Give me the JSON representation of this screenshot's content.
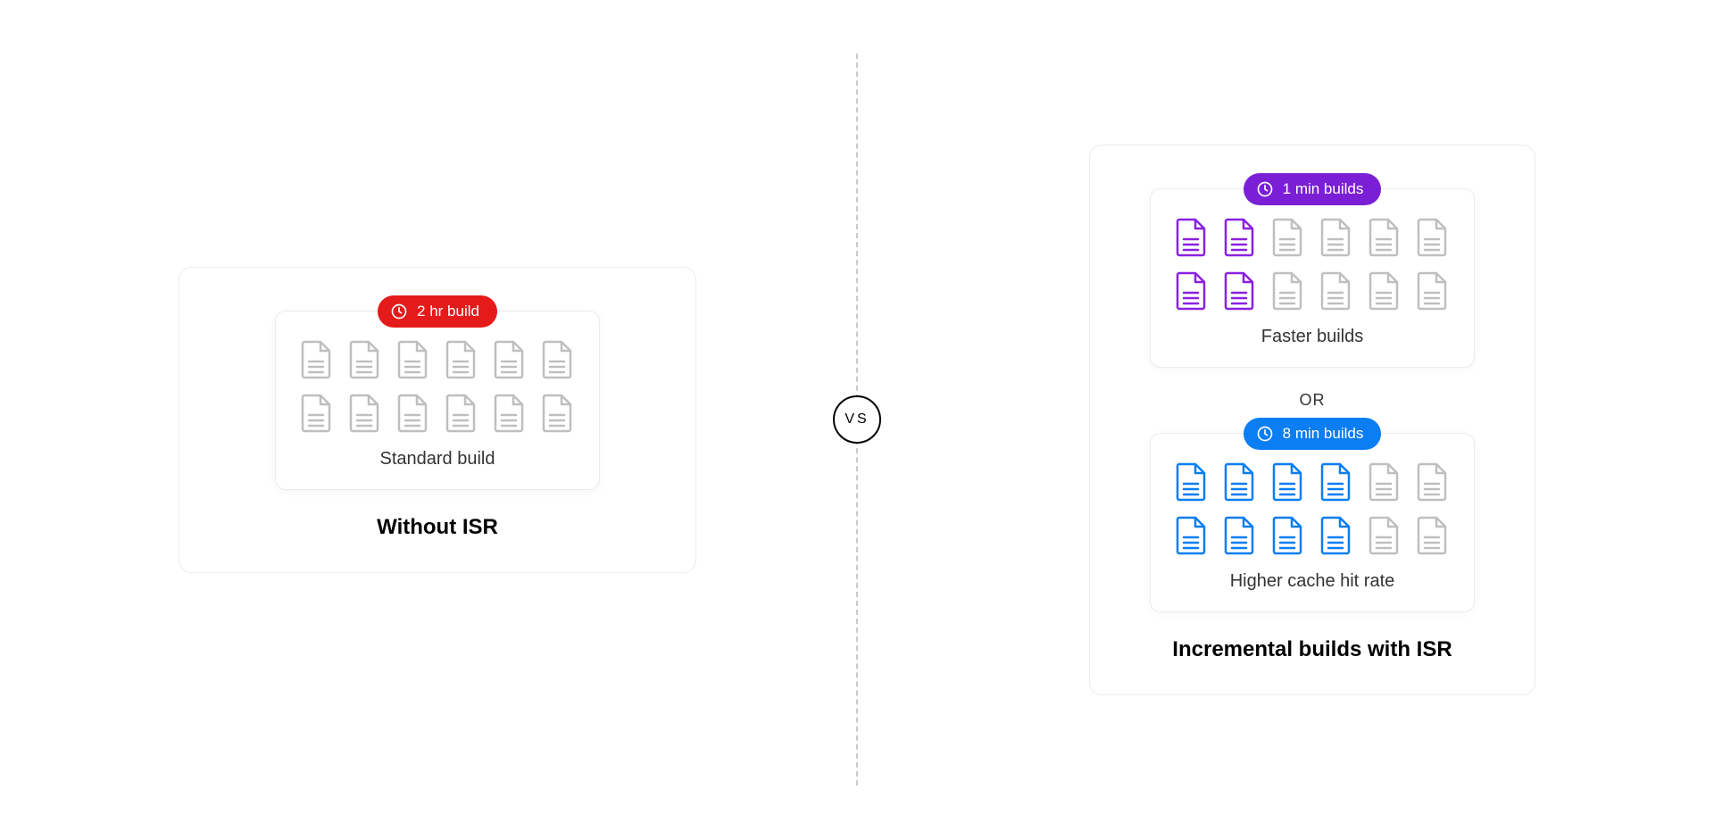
{
  "colors": {
    "doc_gray": "#bfbfbf",
    "border": "#ececec",
    "text": "#333333",
    "black": "#000000"
  },
  "vs_label": "VS",
  "left": {
    "title": "Without ISR",
    "card": {
      "pill_label": "2 hr build",
      "pill_bg": "#e51a1a",
      "label": "Standard build",
      "doc_total": 12,
      "doc_highlighted": 0,
      "highlight_color": "#bfbfbf"
    }
  },
  "right": {
    "title": "Incremental builds with ISR",
    "or_label": "OR",
    "cards": [
      {
        "pill_label": "1 min builds",
        "pill_bg": "#7b1fd6",
        "label": "Faster builds",
        "doc_total": 12,
        "doc_highlighted": 4,
        "highlight_pattern": [
          0,
          1,
          6,
          7
        ],
        "highlight_color": "#8a21e0"
      },
      {
        "pill_label": "8 min builds",
        "pill_bg": "#0a7ef2",
        "label": "Higher cache hit rate",
        "doc_total": 12,
        "doc_highlighted": 8,
        "highlight_pattern": [
          0,
          1,
          2,
          3,
          6,
          7,
          8,
          9
        ],
        "highlight_color": "#0a7ef2"
      }
    ]
  },
  "doc_icon": {
    "w": 36,
    "h": 44
  }
}
